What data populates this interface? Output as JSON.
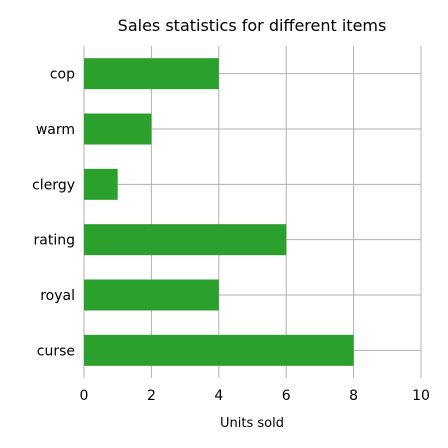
{
  "chart_data": {
    "type": "bar",
    "orientation": "horizontal",
    "title": "Sales statistics for different items",
    "xlabel": "Units sold",
    "ylabel": "",
    "categories": [
      "curse",
      "royal",
      "rating",
      "clergy",
      "warm",
      "cop"
    ],
    "values": [
      8,
      4,
      6,
      1,
      2,
      4
    ],
    "xlim": [
      0,
      10
    ],
    "xticks": [
      0,
      2,
      4,
      6,
      8,
      10
    ],
    "grid": true,
    "bar_color": "#2ca02c"
  }
}
